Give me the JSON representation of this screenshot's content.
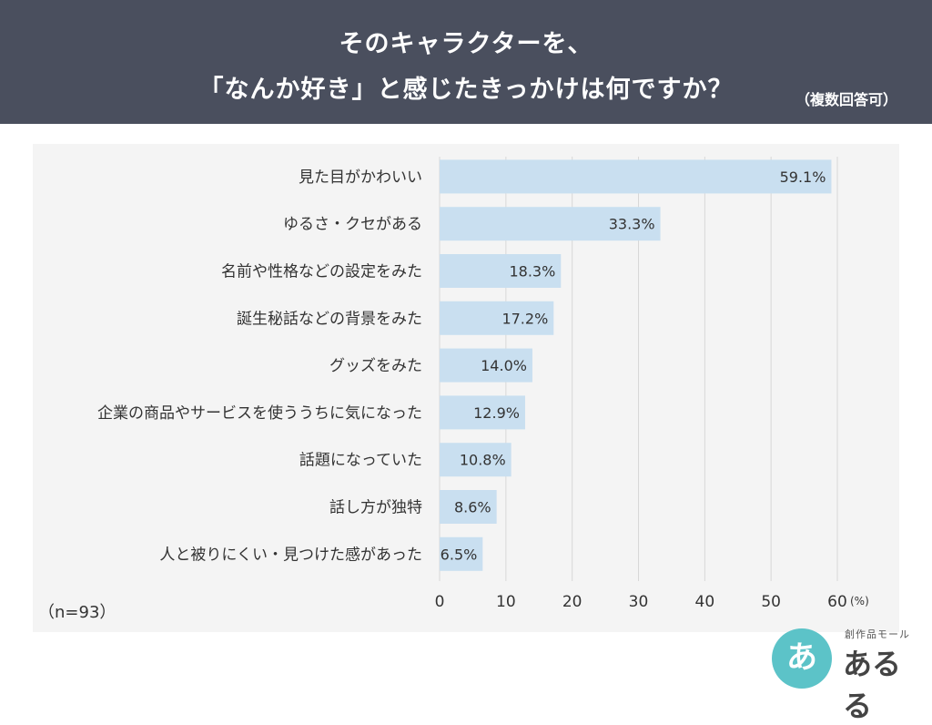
{
  "header": {
    "title_line1": "そのキャラクターを、",
    "title_line2": "「なんか好き」と感じたきっかけは何ですか？",
    "note": "（複数回答可）"
  },
  "footer": {
    "sample": "（n=93）"
  },
  "logo": {
    "mark": "あ",
    "subtitle": "創作品モール",
    "name": "あるる"
  },
  "colors": {
    "header_bg": "#4a4f5e",
    "bar": "#c9dff0",
    "panel_bg": "#f4f4f4",
    "logo_accent": "#5cc3c8"
  },
  "chart_data": {
    "type": "bar",
    "orientation": "horizontal",
    "categories": [
      "見た目がかわいい",
      "ゆるさ・クセがある",
      "名前や性格などの設定をみた",
      "誕生秘話などの背景をみた",
      "グッズをみた",
      "企業の商品やサービスを使ううちに気になった",
      "話題になっていた",
      "話し方が独特",
      "人と被りにくい・見つけた感があった"
    ],
    "values": [
      59.1,
      33.3,
      18.3,
      17.2,
      14.0,
      12.9,
      10.8,
      8.6,
      6.5
    ],
    "value_labels": [
      "59.1%",
      "33.3%",
      "18.3%",
      "17.2%",
      "14.0%",
      "12.9%",
      "10.8%",
      "8.6%",
      "6.5%"
    ],
    "xticks": [
      0,
      10,
      20,
      30,
      40,
      50,
      60
    ],
    "xlim": [
      0,
      60
    ],
    "unit": "(%)",
    "grid": true
  }
}
